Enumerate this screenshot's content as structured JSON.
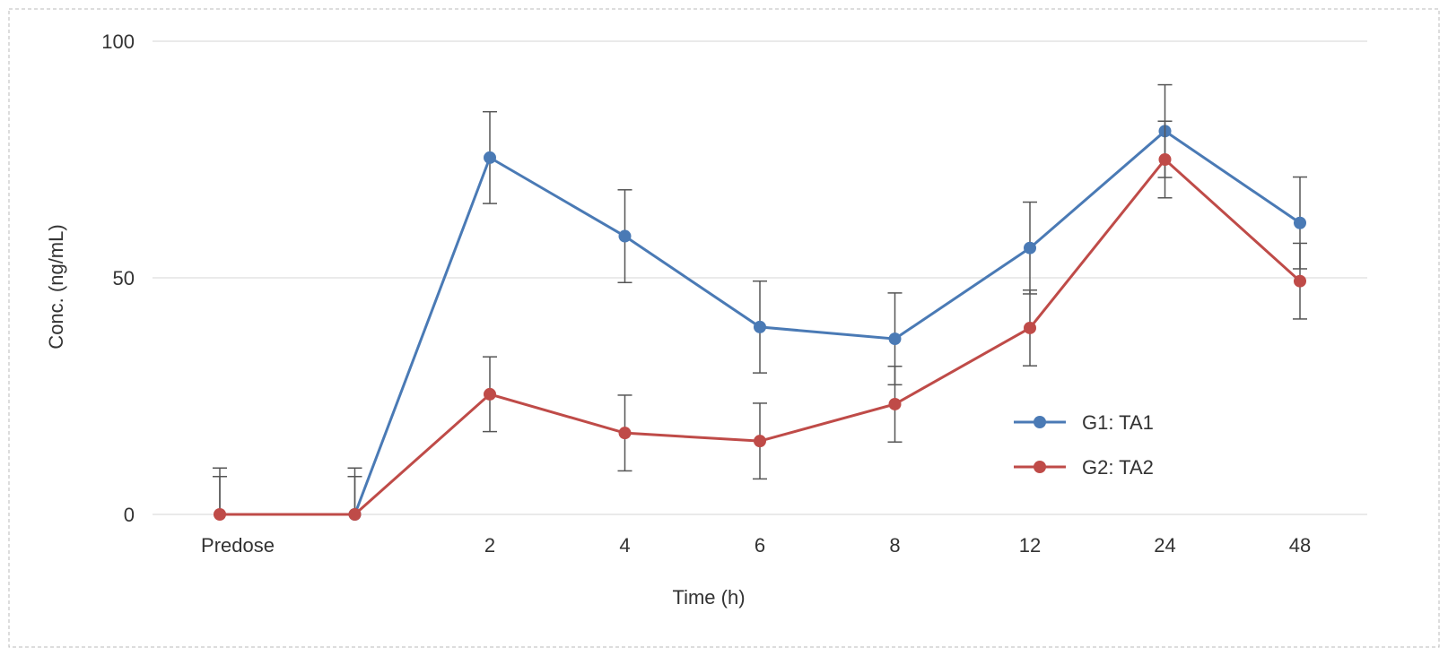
{
  "chart_data": {
    "type": "line",
    "xlabel": "Time (h)",
    "ylabel": "Conc. (ng/mL)",
    "categories": [
      "Predose",
      "",
      "2",
      "4",
      "6",
      "8",
      "12",
      "24",
      "48"
    ],
    "ylim": [
      0,
      100
    ],
    "yticks": [
      0,
      50,
      100
    ],
    "grid": true,
    "legend": "right",
    "series": [
      {
        "name": "G1: TA1",
        "color": "#4a7ab5",
        "values": [
          0,
          0,
          75.4,
          58.8,
          39.6,
          37.1,
          56.3,
          81.0,
          61.6
        ],
        "error": [
          9.8,
          9.8,
          9.7,
          9.8,
          9.7,
          9.7,
          9.7,
          9.8,
          9.7
        ]
      },
      {
        "name": "G2: TA2",
        "color": "#bf4b48",
        "values": [
          0,
          0,
          25.4,
          17.2,
          15.5,
          23.3,
          39.4,
          75.0,
          49.3
        ],
        "error": [
          8.0,
          8.0,
          7.9,
          8.0,
          8.0,
          8.0,
          8.0,
          8.1,
          8.0
        ]
      }
    ]
  }
}
